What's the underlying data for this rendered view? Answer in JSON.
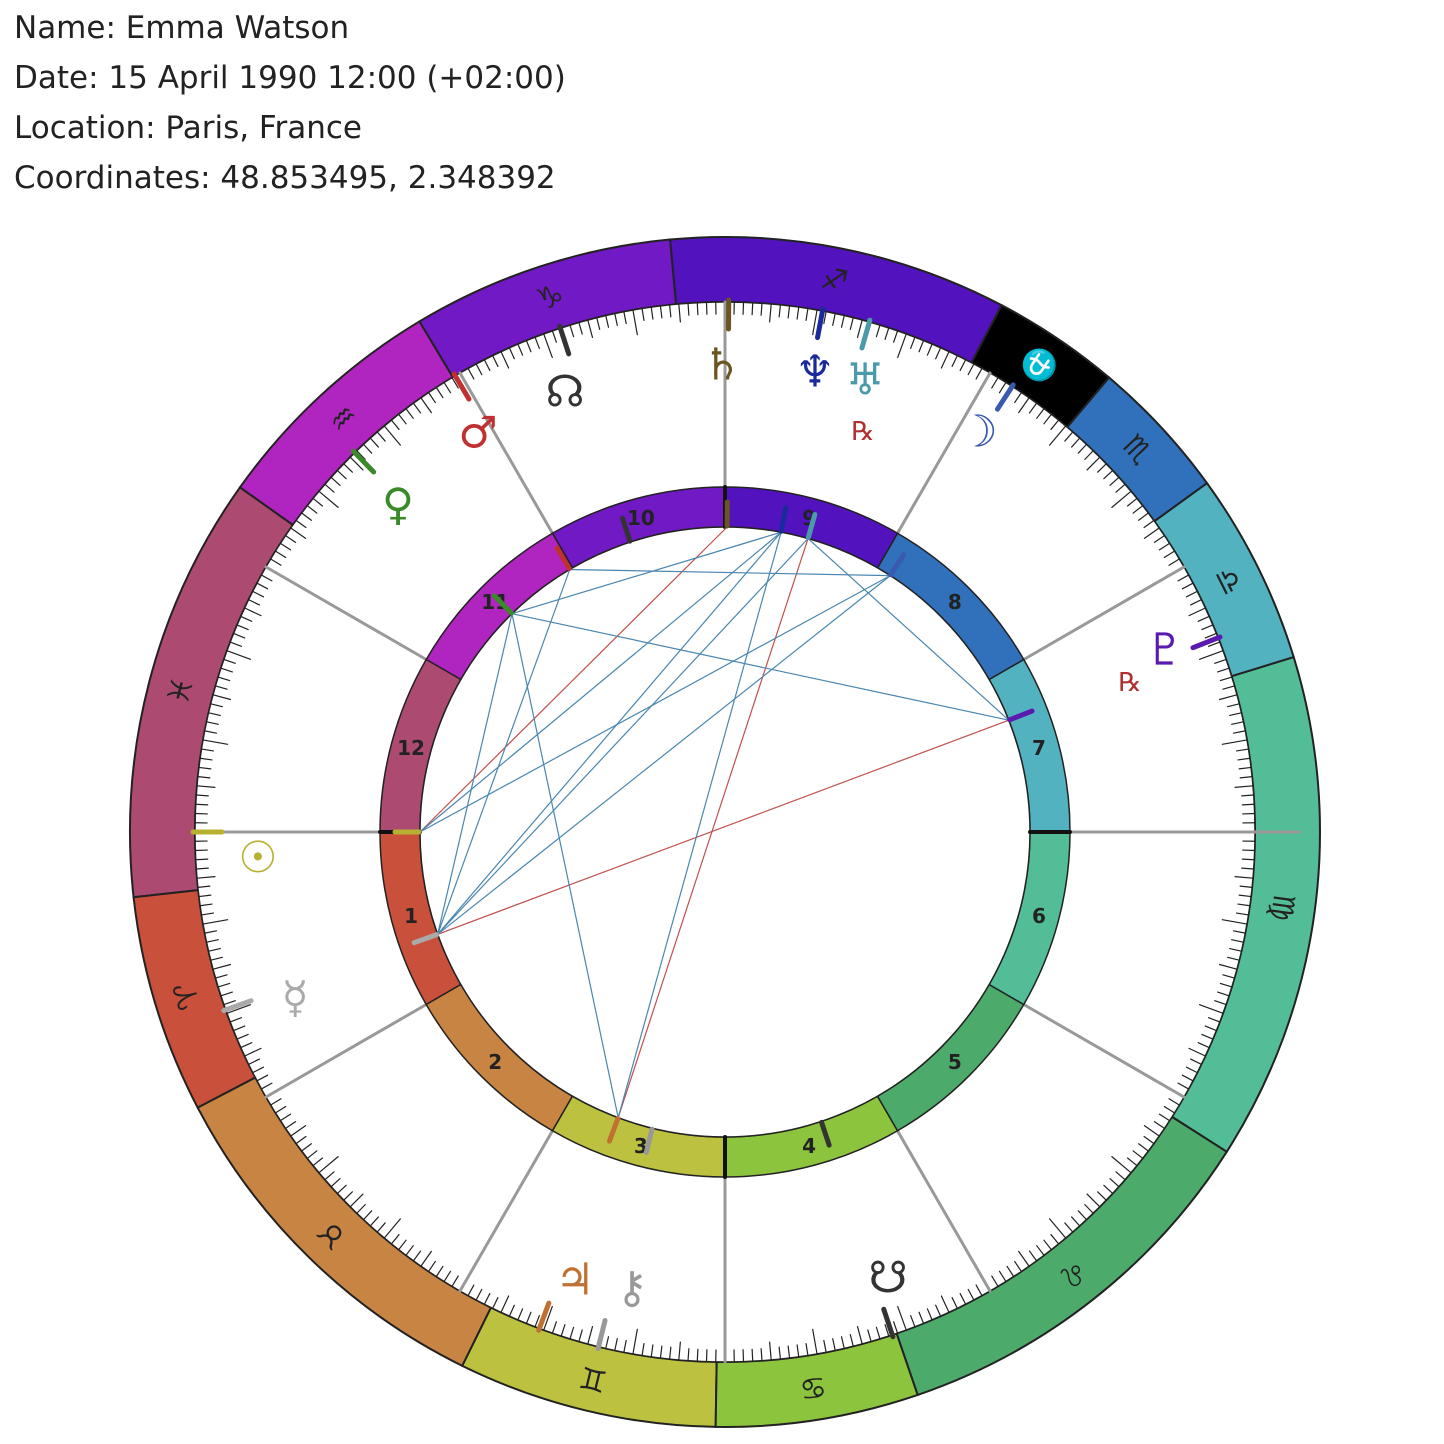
{
  "header": {
    "name": "Name: Emma Watson",
    "date": "Date: 15 April 1990 12:00 (+02:00)",
    "location": "Location: Paris, France",
    "coordinates": "Coordinates: 48.853495, 2.348392"
  },
  "signs": [
    "♓",
    "♈",
    "♉",
    "♊",
    "♋",
    "♌",
    "♍",
    "♎",
    "♏",
    "⛎",
    "♐",
    "♑",
    "♒"
  ],
  "houses": [
    "1",
    "2",
    "3",
    "4",
    "5",
    "6",
    "7",
    "8",
    "9",
    "10",
    "11",
    "12"
  ],
  "planets": [
    "♄",
    "♆",
    "♅",
    "☽",
    "♇",
    "☉",
    "☿",
    "♀",
    "♂",
    "☊",
    "♃",
    "⚷",
    "☋"
  ],
  "retrograde": [
    "℞",
    "℞"
  ]
}
